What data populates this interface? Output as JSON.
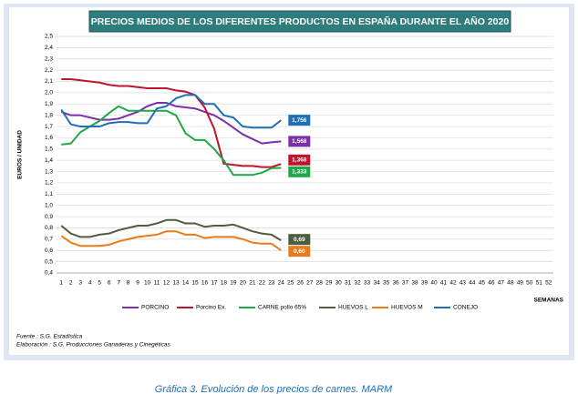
{
  "chart_data": {
    "type": "line",
    "title": "PRECIOS MEDIOS DE LOS DIFERENTES PRODUCTOS EN ESPAÑA DURANTE EL AÑO 2020",
    "y_label": "EUROS / UNIDAD",
    "x_label": "SEMANAS",
    "source": "Fuente :  S.G. Estadística",
    "elaboration": "Elaboración : S.G. Producciones Ganaderas y Cinegéticas",
    "caption": "Gráfica 3. Evolución de los precios de carnes. MARM",
    "grid": true,
    "legend": "bottom",
    "categories": [
      "1",
      "2",
      "3",
      "4",
      "5",
      "6",
      "7",
      "8",
      "9",
      "10",
      "11",
      "12",
      "13",
      "14",
      "15",
      "16",
      "17",
      "18",
      "19",
      "20",
      "21",
      "22",
      "23",
      "24",
      "25",
      "26",
      "27",
      "28",
      "29",
      "30",
      "31",
      "32",
      "33",
      "34",
      "35",
      "36",
      "37",
      "38",
      "39",
      "40",
      "41",
      "42",
      "43",
      "44",
      "45",
      "46",
      "47",
      "48",
      "49",
      "50",
      "51",
      "52"
    ],
    "ylim": [
      0.4,
      2.5
    ],
    "yticks": [
      {
        "value": 0.4,
        "label": "0,4"
      },
      {
        "value": 0.5,
        "label": "0,5"
      },
      {
        "value": 0.6,
        "label": "0,6"
      },
      {
        "value": 0.7,
        "label": "0,7"
      },
      {
        "value": 0.8,
        "label": "0,8"
      },
      {
        "value": 0.9,
        "label": "0,9"
      },
      {
        "value": 1.0,
        "label": "1,0"
      },
      {
        "value": 1.1,
        "label": "1,1"
      },
      {
        "value": 1.2,
        "label": "1,2"
      },
      {
        "value": 1.3,
        "label": "1,3"
      },
      {
        "value": 1.4,
        "label": "1,4"
      },
      {
        "value": 1.5,
        "label": "1,5"
      },
      {
        "value": 1.6,
        "label": "1,6"
      },
      {
        "value": 1.7,
        "label": "1,7"
      },
      {
        "value": 1.8,
        "label": "1,8"
      },
      {
        "value": 1.9,
        "label": "1,9"
      },
      {
        "value": 2.0,
        "label": "2,0"
      },
      {
        "value": 2.1,
        "label": "2,1"
      },
      {
        "value": 2.2,
        "label": "2,2"
      },
      {
        "value": 2.3,
        "label": "2,3"
      },
      {
        "value": 2.4,
        "label": "2,4"
      },
      {
        "value": 2.5,
        "label": "2,5"
      }
    ],
    "series": [
      {
        "name": "PORCINO",
        "color": "#7b2fa8",
        "values": [
          1.83,
          1.8,
          1.8,
          1.78,
          1.76,
          1.76,
          1.77,
          1.8,
          1.83,
          1.88,
          1.91,
          1.91,
          1.88,
          1.87,
          1.86,
          1.83,
          1.8,
          1.75,
          1.69,
          1.63,
          1.59,
          1.55,
          1.56,
          1.568,
          null,
          null,
          null,
          null,
          null,
          null,
          null,
          null,
          null,
          null,
          null,
          null,
          null,
          null,
          null,
          null,
          null,
          null,
          null,
          null,
          null,
          null,
          null,
          null,
          null,
          null,
          null,
          null
        ],
        "value_labels": [
          null,
          null,
          null,
          null,
          null,
          null,
          null,
          null,
          null,
          null,
          null,
          null,
          null,
          null,
          null,
          null,
          null,
          null,
          null,
          null,
          null,
          null,
          null,
          "1,568",
          null,
          null,
          null,
          null,
          null,
          null,
          null,
          null,
          null,
          null,
          null,
          null,
          null,
          null,
          null,
          null,
          null,
          null,
          null,
          null,
          null,
          null,
          null,
          null,
          null,
          null,
          null,
          null
        ]
      },
      {
        "name": "Porcino Ex.",
        "color": "#c0142c",
        "values": [
          2.12,
          2.12,
          2.11,
          2.1,
          2.09,
          2.07,
          2.06,
          2.06,
          2.05,
          2.04,
          2.04,
          2.04,
          2.02,
          2.01,
          1.98,
          1.87,
          1.68,
          1.37,
          1.36,
          1.35,
          1.35,
          1.34,
          1.34,
          1.368,
          null,
          null,
          null,
          null,
          null,
          null,
          null,
          null,
          null,
          null,
          null,
          null,
          null,
          null,
          null,
          null,
          null,
          null,
          null,
          null,
          null,
          null,
          null,
          null,
          null,
          null,
          null,
          null
        ],
        "value_labels": [
          null,
          null,
          null,
          null,
          null,
          null,
          null,
          null,
          null,
          null,
          null,
          null,
          null,
          null,
          null,
          null,
          null,
          null,
          null,
          null,
          null,
          null,
          null,
          "1,368",
          null,
          null,
          null,
          null,
          null,
          null,
          null,
          null,
          null,
          null,
          null,
          null,
          null,
          null,
          null,
          null,
          null,
          null,
          null,
          null,
          null,
          null,
          null,
          null,
          null,
          null,
          null,
          null
        ]
      },
      {
        "name": "CARNE pollo 65%",
        "color": "#1fa84a",
        "values": [
          1.54,
          1.55,
          1.65,
          1.7,
          1.75,
          1.82,
          1.88,
          1.84,
          1.84,
          1.84,
          1.84,
          1.84,
          1.8,
          1.64,
          1.58,
          1.58,
          1.5,
          1.4,
          1.27,
          1.27,
          1.27,
          1.29,
          1.33,
          1.333,
          null,
          null,
          null,
          null,
          null,
          null,
          null,
          null,
          null,
          null,
          null,
          null,
          null,
          null,
          null,
          null,
          null,
          null,
          null,
          null,
          null,
          null,
          null,
          null,
          null,
          null,
          null,
          null
        ],
        "value_labels": [
          null,
          null,
          null,
          null,
          null,
          null,
          null,
          null,
          null,
          null,
          null,
          null,
          null,
          null,
          null,
          null,
          null,
          null,
          null,
          null,
          null,
          null,
          null,
          "1,333",
          null,
          null,
          null,
          null,
          null,
          null,
          null,
          null,
          null,
          null,
          null,
          null,
          null,
          null,
          null,
          null,
          null,
          null,
          null,
          null,
          null,
          null,
          null,
          null,
          null,
          null,
          null,
          null
        ]
      },
      {
        "name": "HUEVOS L",
        "color": "#4d5e3e",
        "values": [
          0.82,
          0.75,
          0.72,
          0.72,
          0.74,
          0.75,
          0.78,
          0.8,
          0.82,
          0.82,
          0.84,
          0.87,
          0.87,
          0.84,
          0.84,
          0.81,
          0.82,
          0.82,
          0.83,
          0.8,
          0.77,
          0.75,
          0.74,
          0.69,
          null,
          null,
          null,
          null,
          null,
          null,
          null,
          null,
          null,
          null,
          null,
          null,
          null,
          null,
          null,
          null,
          null,
          null,
          null,
          null,
          null,
          null,
          null,
          null,
          null,
          null,
          null,
          null
        ],
        "value_labels": [
          null,
          null,
          null,
          null,
          null,
          null,
          null,
          null,
          null,
          null,
          null,
          null,
          null,
          null,
          null,
          null,
          null,
          null,
          null,
          null,
          null,
          null,
          null,
          "0,69",
          null,
          null,
          null,
          null,
          null,
          null,
          null,
          null,
          null,
          null,
          null,
          null,
          null,
          null,
          null,
          null,
          null,
          null,
          null,
          null,
          null,
          null,
          null,
          null,
          null,
          null,
          null,
          null
        ]
      },
      {
        "name": "HUEVOS M",
        "color": "#e97b1c",
        "values": [
          0.73,
          0.67,
          0.64,
          0.64,
          0.64,
          0.65,
          0.68,
          0.7,
          0.72,
          0.73,
          0.74,
          0.77,
          0.77,
          0.74,
          0.74,
          0.71,
          0.72,
          0.72,
          0.72,
          0.7,
          0.67,
          0.66,
          0.66,
          0.6,
          null,
          null,
          null,
          null,
          null,
          null,
          null,
          null,
          null,
          null,
          null,
          null,
          null,
          null,
          null,
          null,
          null,
          null,
          null,
          null,
          null,
          null,
          null,
          null,
          null,
          null,
          null,
          null
        ],
        "value_labels": [
          null,
          null,
          null,
          null,
          null,
          null,
          null,
          null,
          null,
          null,
          null,
          null,
          null,
          null,
          null,
          null,
          null,
          null,
          null,
          null,
          null,
          null,
          null,
          "0,60",
          null,
          null,
          null,
          null,
          null,
          null,
          null,
          null,
          null,
          null,
          null,
          null,
          null,
          null,
          null,
          null,
          null,
          null,
          null,
          null,
          null,
          null,
          null,
          null,
          null,
          null,
          null,
          null
        ]
      },
      {
        "name": "CONEJO",
        "color": "#1f6fb4",
        "values": [
          1.85,
          1.72,
          1.7,
          1.7,
          1.7,
          1.73,
          1.74,
          1.74,
          1.73,
          1.73,
          1.86,
          1.88,
          1.95,
          1.98,
          1.98,
          1.9,
          1.9,
          1.8,
          1.78,
          1.7,
          1.69,
          1.69,
          1.69,
          1.756,
          null,
          null,
          null,
          null,
          null,
          null,
          null,
          null,
          null,
          null,
          null,
          null,
          null,
          null,
          null,
          null,
          null,
          null,
          null,
          null,
          null,
          null,
          null,
          null,
          null,
          null,
          null,
          null
        ],
        "value_labels": [
          null,
          null,
          null,
          null,
          null,
          null,
          null,
          null,
          null,
          null,
          null,
          null,
          null,
          null,
          null,
          null,
          null,
          null,
          null,
          null,
          null,
          null,
          null,
          "1,756",
          null,
          null,
          null,
          null,
          null,
          null,
          null,
          null,
          null,
          null,
          null,
          null,
          null,
          null,
          null,
          null,
          null,
          null,
          null,
          null,
          null,
          null,
          null,
          null,
          null,
          null,
          null,
          null
        ]
      }
    ]
  }
}
